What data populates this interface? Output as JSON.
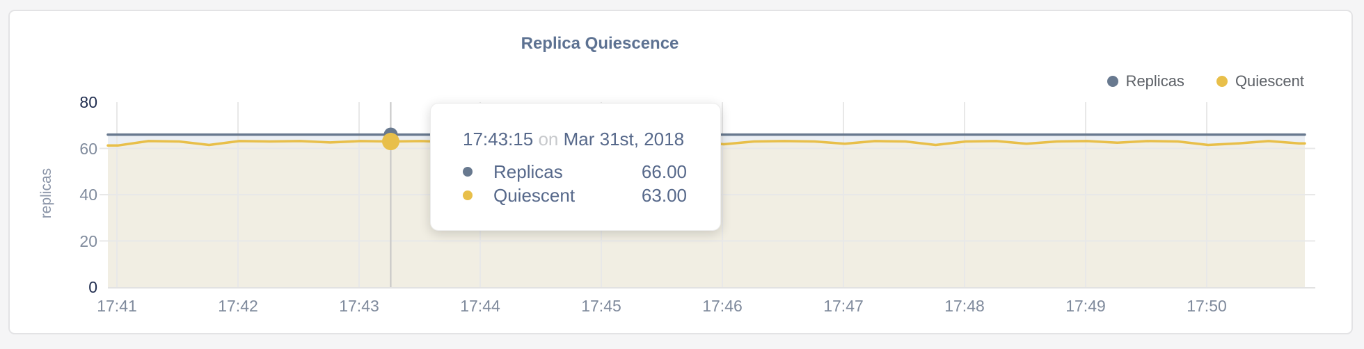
{
  "chart_data": {
    "type": "area",
    "title": "Replica Quiescence",
    "ylabel": "replicas",
    "ylim": [
      0,
      80
    ],
    "yticks": [
      80,
      60,
      40,
      20,
      0
    ],
    "xticks": [
      "17:41",
      "17:42",
      "17:43",
      "17:44",
      "17:45",
      "17:46",
      "17:47",
      "17:48",
      "17:49",
      "17:50"
    ],
    "x_start": "17:41:00",
    "x_interval_seconds": 15,
    "grid": true,
    "legend_position": "top-right",
    "series": [
      {
        "name": "Replicas",
        "color": "#68798f",
        "fill_color": "#ebeff4",
        "values": [
          66,
          66,
          66,
          66,
          66,
          66,
          66,
          66,
          66,
          66,
          66,
          66,
          66,
          66,
          66,
          66,
          66,
          66,
          66,
          66,
          66,
          66,
          66,
          66,
          66,
          66,
          66,
          66,
          66,
          66,
          66,
          66,
          66,
          66,
          66,
          66,
          66,
          66,
          66,
          66
        ]
      },
      {
        "name": "Quiescent",
        "color": "#e8bf4a",
        "fill_color": "#f1eee3",
        "values": [
          61.3,
          63.2,
          63,
          61.5,
          63.2,
          63,
          63.2,
          62.6,
          63.2,
          63,
          63.2,
          62.8,
          61.2,
          63,
          63.2,
          63,
          62.5,
          61.6,
          63,
          63.2,
          61.8,
          63,
          63.2,
          63,
          62,
          63.2,
          63,
          61.5,
          63,
          63.2,
          62,
          63,
          63.2,
          62.5,
          63.2,
          63,
          61.5,
          62.2,
          63.2,
          62.2
        ]
      }
    ],
    "hover": {
      "index": 9,
      "time": "17:43:15",
      "date": "Mar 31st, 2018",
      "replicas_value": 66,
      "quiescent_value": 63
    }
  },
  "legend": {
    "items": [
      {
        "label": "Replicas",
        "color": "#68798f"
      },
      {
        "label": "Quiescent",
        "color": "#e8bf4a"
      }
    ]
  },
  "tooltip": {
    "time": "17:43:15",
    "connector": "on",
    "date": "Mar 31st, 2018",
    "rows": [
      {
        "label": "Replicas",
        "value": "66.00",
        "color": "#68798f"
      },
      {
        "label": "Quiescent",
        "value": "63.00",
        "color": "#e8bf4a"
      }
    ]
  },
  "colors": {
    "page_background": "#f5f5f6",
    "card_background": "#ffffff",
    "title_text": "#5d7292",
    "gridline": "#e8e8e8",
    "crosshair": "#c6c6c6",
    "axis_tick_text": "#7f8a9c",
    "axis_tick_text_emphasis": "#1f2c4e"
  }
}
